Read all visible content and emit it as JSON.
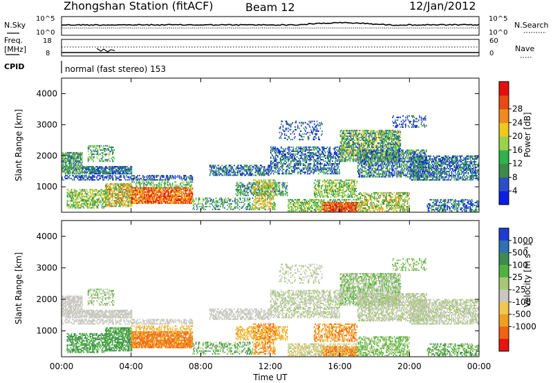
{
  "header": {
    "station": "Zhongshan Station (fitACF)",
    "beam": "Beam 12",
    "date": "12/Jan/2012"
  },
  "params_panel": {
    "nsky_label": "N.Sky",
    "nsky_ticks": [
      "10^5",
      "10^0"
    ],
    "nsearch_label": "N.Search",
    "freq_label_line1": "Freq.",
    "freq_label_line2": "[MHz]",
    "freq_ticks": [
      "18",
      "8"
    ],
    "nave_ticks": [
      "60",
      "0"
    ],
    "nave_label": "Nave",
    "cpid_label": "CPID",
    "cpid_value": "normal (fast stereo) 153"
  },
  "chart_data": [
    {
      "type": "heatmap",
      "name": "power",
      "ylabel": "Slant Range [km]",
      "xlabel": "",
      "ylim": [
        180,
        4500
      ],
      "xlim_hours": [
        0,
        24
      ],
      "y_ticks": [
        "1000",
        "2000",
        "3000",
        "4000"
      ],
      "colorbar": {
        "label": "Power [dB]",
        "ticks": [
          "4",
          "8",
          "12",
          "16",
          "20",
          "24",
          "28"
        ],
        "colors": [
          "#0a1ee6",
          "#2c4fc8",
          "#3c8a4a",
          "#2fb24a",
          "#9ad24a",
          "#f0c81e",
          "#f08a1e",
          "#e84a14",
          "#e60f0f"
        ]
      }
    },
    {
      "type": "heatmap",
      "name": "velocity",
      "ylabel": "Slant Range [km]",
      "xlabel": "Time UT",
      "ylim": [
        180,
        4500
      ],
      "xlim_hours": [
        0,
        24
      ],
      "y_ticks": [
        "1000",
        "2000",
        "3000",
        "4000"
      ],
      "x_ticks": [
        "00:00",
        "04:00",
        "08:00",
        "12:00",
        "16:00",
        "20:00",
        "00:00"
      ],
      "colorbar": {
        "label": "Velocity [m s⁻¹]",
        "ticks": [
          "1000",
          "500",
          "100",
          "25",
          "-25",
          "-100",
          "-500",
          "-1000"
        ],
        "colors": [
          "#1e3cd2",
          "#3070b4",
          "#3c8c50",
          "#50b43c",
          "#a8c878",
          "#c8c8c0",
          "#f0c850",
          "#f0a020",
          "#f06414",
          "#e61414"
        ]
      }
    }
  ]
}
